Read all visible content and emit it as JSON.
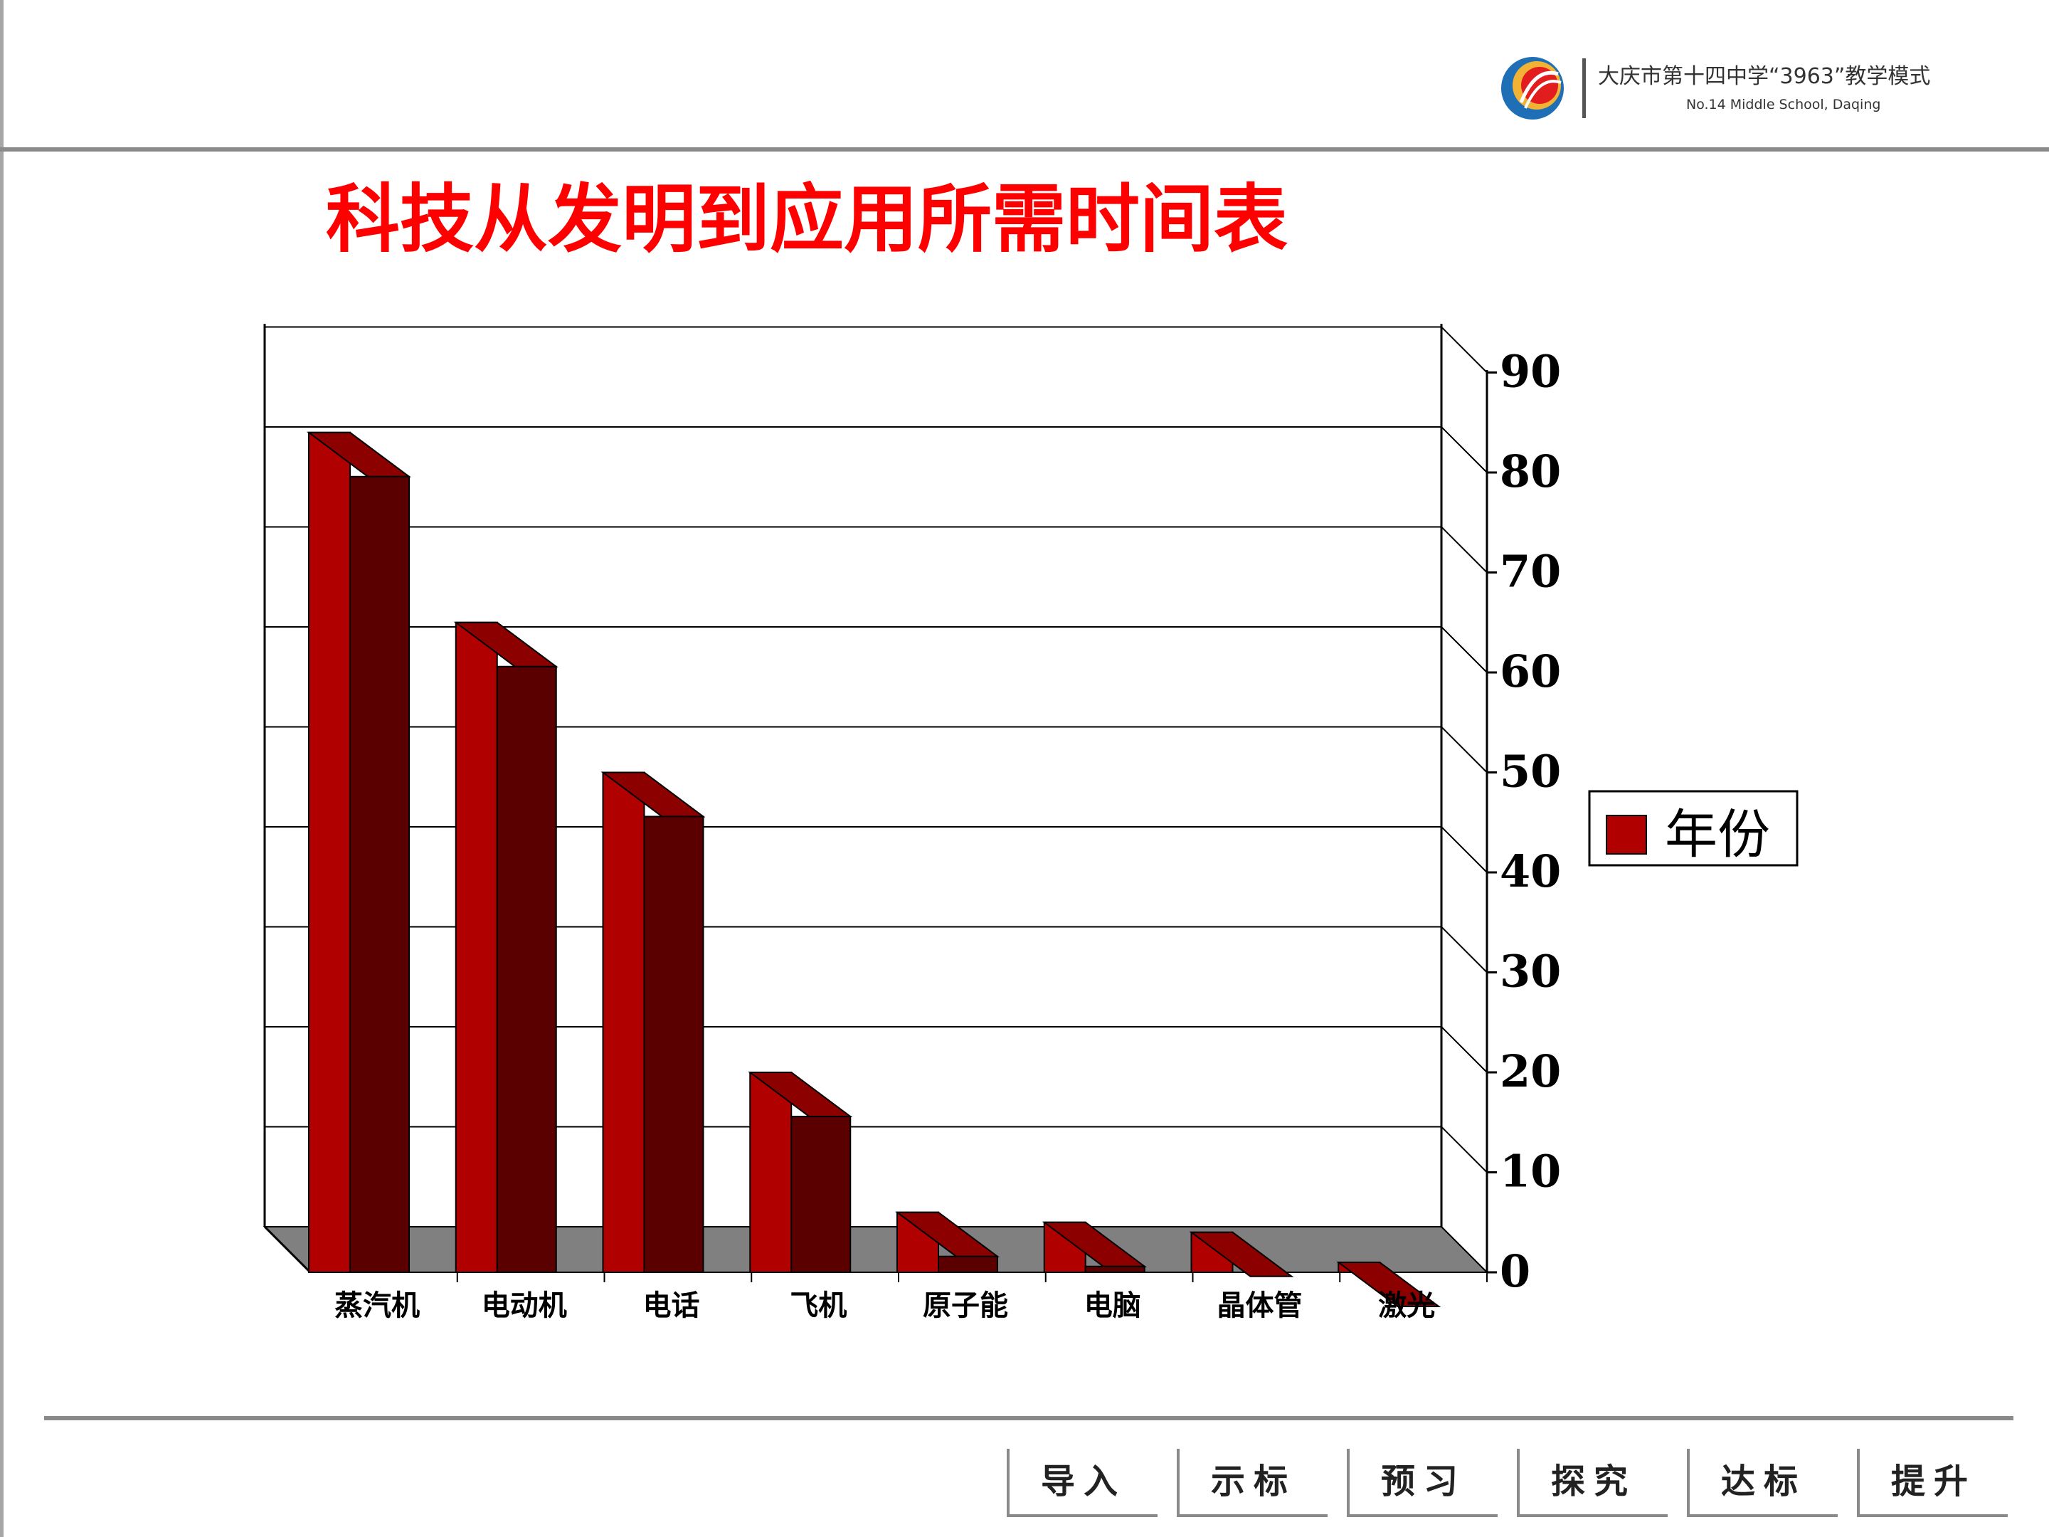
{
  "header": {
    "school_name": "大庆市第十四中学“3963”教学模式",
    "school_name_en": "No.14 Middle School, Daqing"
  },
  "title": "科技从发明到应用所需时间表",
  "chart_data": {
    "type": "bar",
    "title": "科技从发明到应用所需时间表",
    "categories": [
      "蒸汽机",
      "电动机",
      "电话",
      "飞机",
      "原子能",
      "电脑",
      "晶体管",
      "激光"
    ],
    "series": [
      {
        "name": "年份",
        "values": [
          84,
          65,
          50,
          20,
          6,
          5,
          4,
          1
        ],
        "color": "#b00000"
      }
    ],
    "ylim": [
      0,
      95
    ],
    "yticks": [
      0,
      10,
      20,
      30,
      40,
      50,
      60,
      70,
      80,
      90
    ],
    "y_axis_position": "right",
    "grid": true,
    "legend": "right",
    "three_d": true
  },
  "nav": {
    "items": [
      "导入",
      "示标",
      "预习",
      "探究",
      "达标",
      "提升"
    ]
  },
  "colors": {
    "title": "#ff0000",
    "bar_front": "#b00000",
    "bar_side": "#5a0000",
    "floor": "#808080"
  }
}
